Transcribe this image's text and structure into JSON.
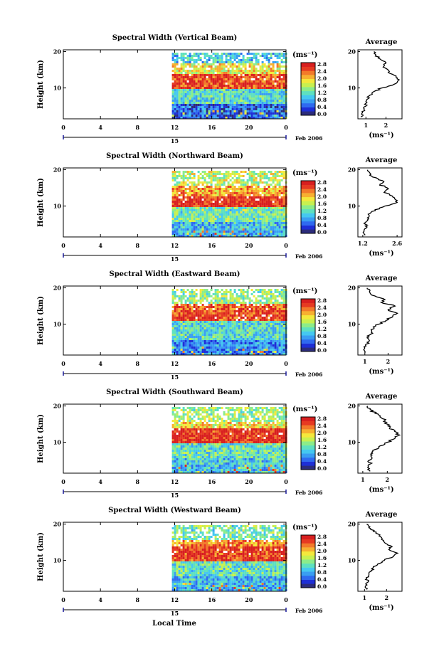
{
  "figure": {
    "xlabel": "Local Time",
    "date_label": "Feb 2006",
    "day_label": "15",
    "cb_unit": "(ms⁻¹)",
    "avg_title": "Average",
    "avg_unit": "(ms⁻¹)",
    "colors": {
      "colormap": [
        "#2c2c7c",
        "#1e2fd6",
        "#2f6af0",
        "#3a9ef2",
        "#45c8f0",
        "#5ee0c0",
        "#8cec8a",
        "#c8f050",
        "#f4e83c",
        "#f7b030",
        "#f27a2a",
        "#e63a22",
        "#d81f1f"
      ],
      "axes": "#000000",
      "day_marker": "#1a1a9a"
    }
  },
  "chart_data": [
    {
      "type": "heatmap",
      "title": "Spectral Width (Vertical Beam)",
      "ylabel": "Height (km)",
      "x_ticks": [
        "0",
        "4",
        "8",
        "12",
        "16",
        "20",
        "0"
      ],
      "xlim": [
        0,
        24
      ],
      "y_ticks": [
        "20",
        "10"
      ],
      "ylim": [
        1.5,
        20.5
      ],
      "data_x_range": [
        11.7,
        24
      ],
      "colorbar_ticks": [
        "2.8",
        "2.4",
        "2.0",
        "1.6",
        "1.2",
        "0.8",
        "0.4",
        "0.0"
      ],
      "colorbar_range": [
        0,
        2.8
      ],
      "profile_bands": [
        {
          "height": [
            20,
            17
          ],
          "value": 1.0
        },
        {
          "height": [
            17,
            14
          ],
          "value": 1.8
        },
        {
          "height": [
            14,
            10
          ],
          "value": 2.5
        },
        {
          "height": [
            10,
            6
          ],
          "value": 1.1
        },
        {
          "height": [
            6,
            2
          ],
          "value": 0.5
        }
      ],
      "average": {
        "x_ticks": [
          "1",
          "2"
        ],
        "xlim": [
          0.6,
          2.8
        ],
        "y_ticks": [
          "20",
          "10"
        ],
        "ylim": [
          1.5,
          20.5
        ],
        "height": [
          2.0,
          3.0,
          4.0,
          5.0,
          6.0,
          7.0,
          8.0,
          9.0,
          10.0,
          11.0,
          12.0,
          13.0,
          14.0,
          15.0,
          16.0,
          17.0,
          18.0,
          19.0,
          20.0
        ],
        "width": [
          0.75,
          0.8,
          0.9,
          1.0,
          1.05,
          1.1,
          1.2,
          1.4,
          1.8,
          2.4,
          2.6,
          2.5,
          2.2,
          2.1,
          1.9,
          2.0,
          1.7,
          1.5,
          1.4
        ]
      }
    },
    {
      "type": "heatmap",
      "title": "Spectral Width (Northward Beam)",
      "ylabel": "Height (km)",
      "x_ticks": [
        "0",
        "4",
        "8",
        "12",
        "16",
        "20",
        "0"
      ],
      "xlim": [
        0,
        24
      ],
      "y_ticks": [
        "20",
        "10"
      ],
      "ylim": [
        1.5,
        20.5
      ],
      "data_x_range": [
        11.7,
        24
      ],
      "colorbar_ticks": [
        "2.8",
        "2.4",
        "2.0",
        "1.6",
        "1.2",
        "0.8",
        "0.4",
        "0.0"
      ],
      "colorbar_range": [
        0,
        2.8
      ],
      "profile_bands": [
        {
          "height": [
            20,
            16
          ],
          "value": 1.6
        },
        {
          "height": [
            16,
            13
          ],
          "value": 2.1
        },
        {
          "height": [
            13,
            10
          ],
          "value": 2.6
        },
        {
          "height": [
            10,
            6
          ],
          "value": 1.3
        },
        {
          "height": [
            6,
            2
          ],
          "value": 0.9
        }
      ],
      "average": {
        "x_ticks": [
          "1.2",
          "2.6"
        ],
        "xlim": [
          1.0,
          2.8
        ],
        "y_ticks": [
          "20",
          "10"
        ],
        "ylim": [
          1.5,
          20.5
        ],
        "height": [
          2.0,
          3.0,
          4.0,
          5.0,
          6.0,
          7.0,
          8.0,
          9.0,
          10.0,
          11.0,
          12.0,
          13.0,
          14.0,
          15.0,
          16.0,
          17.0,
          18.0,
          19.0,
          20.0
        ],
        "width": [
          1.3,
          1.25,
          1.35,
          1.3,
          1.4,
          1.45,
          1.5,
          1.7,
          2.1,
          2.6,
          2.5,
          2.3,
          2.1,
          2.2,
          1.9,
          2.0,
          1.6,
          1.5,
          1.4
        ]
      }
    },
    {
      "type": "heatmap",
      "title": "Spectral Width (Eastward Beam)",
      "ylabel": "Height (km)",
      "x_ticks": [
        "0",
        "4",
        "8",
        "12",
        "16",
        "20",
        "0"
      ],
      "xlim": [
        0,
        24
      ],
      "y_ticks": [
        "20",
        "10"
      ],
      "ylim": [
        1.5,
        20.5
      ],
      "data_x_range": [
        11.7,
        24
      ],
      "colorbar_ticks": [
        "2.8",
        "2.4",
        "2.0",
        "1.6",
        "1.2",
        "0.8",
        "0.4",
        "0.0"
      ],
      "colorbar_range": [
        0,
        2.8
      ],
      "profile_bands": [
        {
          "height": [
            20,
            16
          ],
          "value": 1.4
        },
        {
          "height": [
            16,
            14
          ],
          "value": 2.4
        },
        {
          "height": [
            14,
            11
          ],
          "value": 2.5
        },
        {
          "height": [
            11,
            6
          ],
          "value": 1.1
        },
        {
          "height": [
            6,
            2
          ],
          "value": 0.7
        }
      ],
      "average": {
        "x_ticks": [
          "1",
          "2"
        ],
        "xlim": [
          0.7,
          2.6
        ],
        "y_ticks": [
          "20",
          "10"
        ],
        "ylim": [
          1.5,
          20.5
        ],
        "height": [
          2.0,
          3.0,
          4.0,
          5.0,
          6.0,
          7.0,
          8.0,
          9.0,
          10.0,
          11.0,
          12.0,
          13.0,
          14.0,
          15.0,
          16.0,
          17.0,
          18.0,
          19.0,
          20.0
        ],
        "width": [
          1.0,
          0.95,
          1.05,
          1.1,
          1.15,
          1.2,
          1.3,
          1.4,
          1.6,
          1.9,
          2.2,
          2.4,
          2.0,
          2.3,
          1.7,
          1.8,
          1.3,
          1.2,
          1.1
        ]
      }
    },
    {
      "type": "heatmap",
      "title": "Spectral Width (Southward Beam)",
      "ylabel": "Height (km)",
      "x_ticks": [
        "0",
        "4",
        "8",
        "12",
        "16",
        "20",
        "0"
      ],
      "xlim": [
        0,
        24
      ],
      "y_ticks": [
        "20",
        "10"
      ],
      "ylim": [
        1.5,
        20.5
      ],
      "data_x_range": [
        11.7,
        24
      ],
      "colorbar_ticks": [
        "2.8",
        "2.4",
        "2.0",
        "1.6",
        "1.2",
        "0.8",
        "0.4",
        "0.0"
      ],
      "colorbar_range": [
        0,
        2.8
      ],
      "profile_bands": [
        {
          "height": [
            20,
            16
          ],
          "value": 1.5
        },
        {
          "height": [
            16,
            14
          ],
          "value": 1.9
        },
        {
          "height": [
            14,
            10
          ],
          "value": 2.6
        },
        {
          "height": [
            10,
            6
          ],
          "value": 1.2
        },
        {
          "height": [
            6,
            2
          ],
          "value": 1.0
        }
      ],
      "average": {
        "x_ticks": [
          "1",
          "2"
        ],
        "xlim": [
          0.8,
          2.6
        ],
        "y_ticks": [
          "20",
          "10"
        ],
        "ylim": [
          1.5,
          20.5
        ],
        "height": [
          2.0,
          3.0,
          4.0,
          5.0,
          6.0,
          7.0,
          8.0,
          9.0,
          10.0,
          11.0,
          12.0,
          13.0,
          14.0,
          15.0,
          16.0,
          17.0,
          18.0,
          19.0,
          20.0
        ],
        "width": [
          1.3,
          1.2,
          1.3,
          1.25,
          1.35,
          1.4,
          1.5,
          1.7,
          2.0,
          2.3,
          2.5,
          2.3,
          2.1,
          2.0,
          1.9,
          1.7,
          1.5,
          1.3,
          1.2
        ]
      }
    },
    {
      "type": "heatmap",
      "title": "Spectral Width (Westward Beam)",
      "ylabel": "Height (km)",
      "x_ticks": [
        "0",
        "4",
        "8",
        "12",
        "16",
        "20",
        "0"
      ],
      "xlim": [
        0,
        24
      ],
      "y_ticks": [
        "20",
        "10"
      ],
      "ylim": [
        1.5,
        20.5
      ],
      "data_x_range": [
        11.7,
        24
      ],
      "colorbar_ticks": [
        "2.8",
        "2.4",
        "2.0",
        "1.6",
        "1.2",
        "0.8",
        "0.4",
        "0.0"
      ],
      "colorbar_range": [
        0,
        2.8
      ],
      "profile_bands": [
        {
          "height": [
            20,
            16
          ],
          "value": 1.3
        },
        {
          "height": [
            16,
            14
          ],
          "value": 2.2
        },
        {
          "height": [
            14,
            10
          ],
          "value": 2.5
        },
        {
          "height": [
            10,
            6
          ],
          "value": 1.2
        },
        {
          "height": [
            6,
            2
          ],
          "value": 0.9
        }
      ],
      "average": {
        "x_ticks": [
          "1",
          "2"
        ],
        "xlim": [
          0.7,
          2.7
        ],
        "y_ticks": [
          "20",
          "10"
        ],
        "ylim": [
          1.5,
          20.5
        ],
        "height": [
          2.0,
          3.0,
          4.0,
          5.0,
          6.0,
          7.0,
          8.0,
          9.0,
          10.0,
          11.0,
          12.0,
          13.0,
          14.0,
          15.0,
          16.0,
          17.0,
          18.0,
          19.0,
          20.0
        ],
        "width": [
          1.1,
          1.05,
          1.15,
          1.1,
          1.2,
          1.3,
          1.4,
          1.6,
          1.9,
          2.3,
          2.5,
          2.1,
          2.2,
          1.9,
          1.8,
          1.7,
          1.4,
          1.2,
          1.1
        ]
      }
    }
  ]
}
